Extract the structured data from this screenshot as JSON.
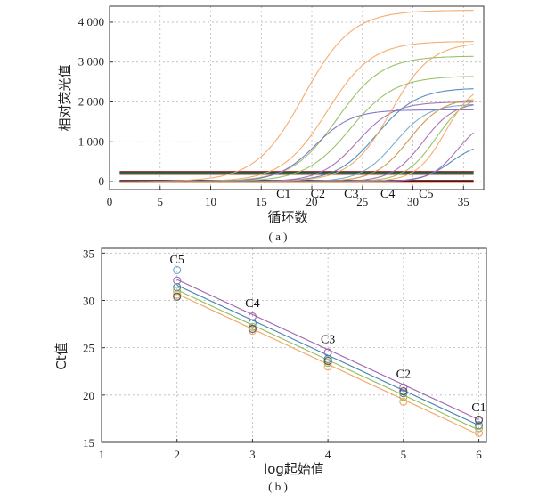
{
  "chart_data": [
    {
      "type": "line",
      "panel_label": "( a )",
      "xlabel": "循环数",
      "ylabel": "相对荧光值",
      "xlim": [
        0,
        37
      ],
      "ylim": [
        -200,
        4400
      ],
      "xticks": [
        0,
        5,
        10,
        15,
        20,
        25,
        30,
        35
      ],
      "yticks": [
        0,
        1000,
        2000,
        3000,
        4000
      ],
      "ytick_labels": [
        "0",
        "1 000",
        "2 000",
        "3 000",
        "4 000"
      ],
      "grid": true,
      "annotations": [
        {
          "text": "C1",
          "x": 17.2,
          "y": -150
        },
        {
          "text": "C2",
          "x": 20.6,
          "y": -150
        },
        {
          "text": "C3",
          "x": 23.9,
          "y": -150
        },
        {
          "text": "C4",
          "x": 27.5,
          "y": -150
        },
        {
          "text": "C5",
          "x": 31.3,
          "y": -150
        }
      ],
      "series": [
        {
          "color": "#f4a460",
          "midpoint": 19.2,
          "plateau": 4300,
          "slope": 0.42
        },
        {
          "color": "#f4a460",
          "midpoint": 21.5,
          "plateau": 3520,
          "slope": 0.45
        },
        {
          "color": "#8fbc5a",
          "midpoint": 22.5,
          "plateau": 3150,
          "slope": 0.45
        },
        {
          "color": "#7b68c8",
          "midpoint": 20.3,
          "plateau": 1800,
          "slope": 0.55
        },
        {
          "color": "#8fbc5a",
          "midpoint": 23.8,
          "plateau": 2650,
          "slope": 0.45
        },
        {
          "color": "#a066b0",
          "midpoint": 24.5,
          "plateau": 2000,
          "slope": 0.55
        },
        {
          "color": "#4682b4",
          "midpoint": 26.4,
          "plateau": 2350,
          "slope": 0.5
        },
        {
          "color": "#f4a460",
          "midpoint": 27.8,
          "plateau": 3500,
          "slope": 0.5
        },
        {
          "color": "#6aa8c8",
          "midpoint": 28.2,
          "plateau": 1950,
          "slope": 0.6
        },
        {
          "color": "#d08c3c",
          "midpoint": 29.6,
          "plateau": 2100,
          "slope": 0.6
        },
        {
          "color": "#a066b0",
          "midpoint": 31.0,
          "plateau": 2000,
          "slope": 0.65
        },
        {
          "color": "#8fbc5a",
          "midpoint": 32.3,
          "plateau": 2200,
          "slope": 0.65
        },
        {
          "color": "#f4a460",
          "midpoint": 33.2,
          "plateau": 2500,
          "slope": 0.7
        },
        {
          "color": "#4682b4",
          "midpoint": 33.8,
          "plateau": 1000,
          "slope": 0.7
        },
        {
          "color": "#a066b0",
          "midpoint": 34.4,
          "plateau": 1600,
          "slope": 0.75
        }
      ],
      "baselines": [
        {
          "color": "#8b0000",
          "y": 250
        },
        {
          "color": "#006400",
          "y": 230
        },
        {
          "color": "#000080",
          "y": 200
        },
        {
          "color": "#8b4513",
          "y": 180
        },
        {
          "color": "#333333",
          "y": 30
        },
        {
          "color": "#8b0000",
          "y": 10
        },
        {
          "color": "#d2691e",
          "y": -20
        }
      ]
    },
    {
      "type": "scatter",
      "panel_label": "( b )",
      "xlabel": "log起始值",
      "ylabel": "Ct值",
      "xlim": [
        1,
        6.1
      ],
      "ylim": [
        15,
        35.5
      ],
      "xticks": [
        1,
        2,
        3,
        4,
        5,
        6
      ],
      "yticks": [
        15,
        20,
        25,
        30,
        35
      ],
      "grid": true,
      "annotations": [
        {
          "text": "C5",
          "x": 2,
          "y": 33.9
        },
        {
          "text": "C4",
          "x": 3,
          "y": 29.3
        },
        {
          "text": "C3",
          "x": 4,
          "y": 25.5
        },
        {
          "text": "C2",
          "x": 5,
          "y": 21.8
        },
        {
          "text": "C1",
          "x": 6,
          "y": 18.3
        }
      ],
      "series": [
        {
          "color": "#a066b0",
          "x": [
            2,
            3,
            4,
            5,
            6
          ],
          "y": [
            32.1,
            28.3,
            24.5,
            20.8,
            17.3
          ],
          "fit": [
            32.2,
            17.4
          ]
        },
        {
          "color": "#4682b4",
          "x": [
            2,
            3,
            4,
            5,
            6
          ],
          "y": [
            31.4,
            27.6,
            23.8,
            20.2,
            16.8
          ],
          "fit": [
            31.6,
            16.8
          ]
        },
        {
          "color": "#8fbc5a",
          "x": [
            2,
            3,
            4,
            5,
            6
          ],
          "y": [
            31.0,
            27.2,
            23.4,
            19.8,
            16.5
          ],
          "fit": [
            31.1,
            16.3
          ]
        },
        {
          "color": "#f4a460",
          "x": [
            2,
            3,
            4,
            5,
            6
          ],
          "y": [
            30.6,
            26.8,
            23.0,
            19.3,
            16.0
          ],
          "fit": [
            30.7,
            15.8
          ]
        },
        {
          "color": "#555555",
          "x": [
            2,
            3,
            4,
            5,
            6
          ],
          "y": [
            30.4,
            27.0,
            23.6,
            20.4,
            17.4
          ]
        },
        {
          "color": "#6aa8c8",
          "x": [
            2
          ],
          "y": [
            33.2
          ]
        }
      ]
    }
  ]
}
